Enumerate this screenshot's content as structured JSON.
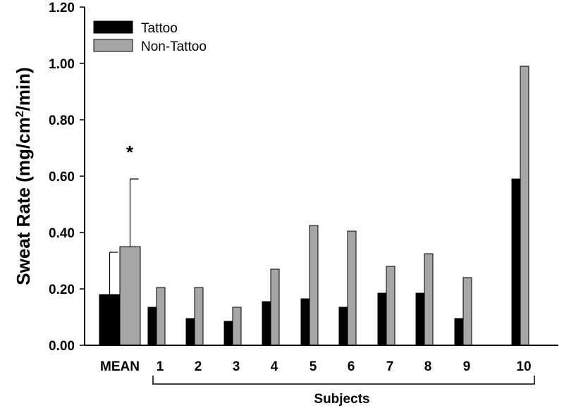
{
  "chart_data": {
    "type": "bar",
    "ylabel_main": "Sweat Rate (mg/cm",
    "ylabel_sup": "2",
    "ylabel_end": "/min)",
    "ylim": [
      0,
      1.2
    ],
    "yticks": [
      "0.00",
      "0.20",
      "0.40",
      "0.60",
      "0.80",
      "1.00",
      "1.20"
    ],
    "grid": false,
    "legend_position": "top-left",
    "categories": [
      "MEAN",
      "1",
      "2",
      "3",
      "4",
      "5",
      "6",
      "7",
      "8",
      "9",
      "10"
    ],
    "series": [
      {
        "name": "Tattoo",
        "color": "#000000",
        "values": [
          0.18,
          0.135,
          0.095,
          0.085,
          0.155,
          0.165,
          0.135,
          0.185,
          0.185,
          0.095,
          0.59
        ]
      },
      {
        "name": "Non-Tattoo",
        "color": "#a6a6a6",
        "values": [
          0.35,
          0.205,
          0.205,
          0.135,
          0.27,
          0.425,
          0.405,
          0.28,
          0.325,
          0.24,
          0.99
        ]
      }
    ],
    "error_bars": [
      {
        "series": "Tattoo",
        "category": "MEAN",
        "upper": 0.33
      },
      {
        "series": "Non-Tattoo",
        "category": "MEAN",
        "upper": 0.59
      }
    ],
    "significance_mark": {
      "text": "*",
      "category": "MEAN"
    },
    "group_bracket_label": "Subjects"
  }
}
